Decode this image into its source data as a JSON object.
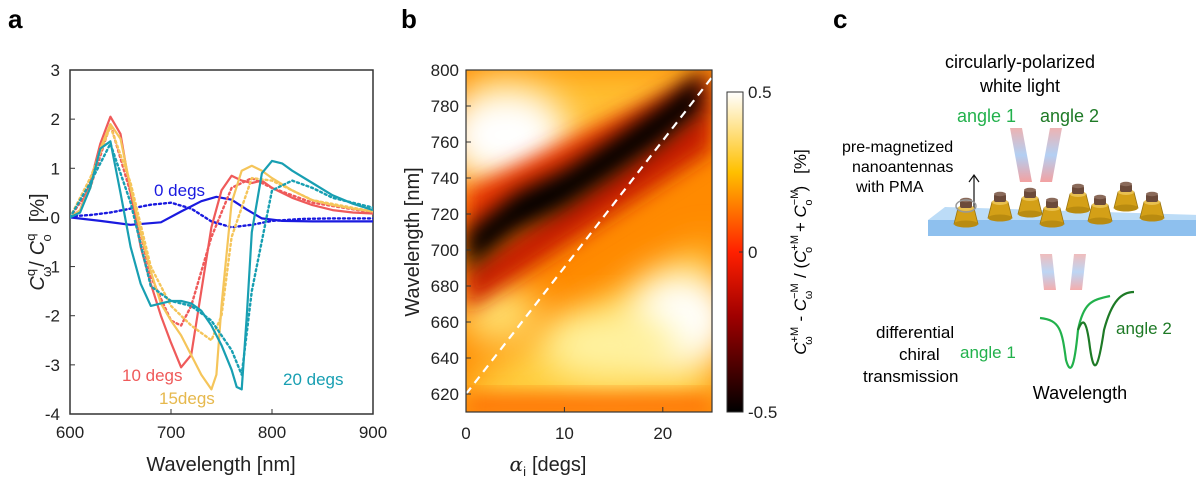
{
  "panels": {
    "a": "a",
    "b": "b",
    "c": "c"
  },
  "chart_data": [
    {
      "type": "line",
      "title": "",
      "xlabel": "Wavelength [nm]",
      "ylabel": "C^q_ω / C^q_o [%]",
      "ylabel_parts": {
        "c": "C",
        "sup": "q",
        "sub": "ω",
        "slash": "/",
        "c2": "C",
        "sup2": "q",
        "sub2": "o",
        "unit": "[%]"
      },
      "xlim": [
        600,
        900
      ],
      "ylim": [
        -4,
        3
      ],
      "xticks": [
        "600",
        "700",
        "800",
        "900"
      ],
      "yticks": [
        "3",
        "2",
        "1",
        "0",
        "-1",
        "-2",
        "-3",
        "-4"
      ],
      "xtick_values": [
        600,
        700,
        800,
        900
      ],
      "ytick_values": [
        3,
        2,
        1,
        0,
        -1,
        -2,
        -3,
        -4
      ],
      "series": [
        {
          "name": "0 degs",
          "label": "0 degs",
          "color": "#1a1adf",
          "style": "solid",
          "x": [
            600,
            630,
            660,
            690,
            710,
            730,
            745,
            760,
            775,
            790,
            810,
            840,
            870,
            900
          ],
          "y": [
            0.0,
            -0.07,
            -0.15,
            -0.1,
            0.12,
            0.33,
            0.42,
            0.36,
            0.16,
            -0.02,
            -0.07,
            -0.08,
            -0.08,
            -0.08
          ]
        },
        {
          "name": "0 degs dotted",
          "color": "#1a1adf",
          "style": "dotted",
          "x": [
            600,
            620,
            640,
            660,
            680,
            700,
            720,
            740,
            760,
            780,
            800,
            830,
            860,
            900
          ],
          "y": [
            0.02,
            0.05,
            0.1,
            0.18,
            0.26,
            0.3,
            0.18,
            -0.08,
            -0.2,
            -0.15,
            -0.07,
            -0.03,
            -0.02,
            -0.02
          ]
        },
        {
          "name": "10 degs",
          "label": "10 degs",
          "color": "#ef5a5a",
          "style": "solid",
          "x": [
            600,
            610,
            620,
            630,
            640,
            650,
            660,
            670,
            680,
            690,
            700,
            710,
            720,
            730,
            740,
            750,
            760,
            770,
            780,
            790,
            800,
            820,
            840,
            860,
            880,
            900
          ],
          "y": [
            0.0,
            0.15,
            0.7,
            1.5,
            2.05,
            1.7,
            0.5,
            -0.6,
            -1.35,
            -2.0,
            -2.55,
            -3.05,
            -2.8,
            -1.5,
            -0.2,
            0.55,
            0.85,
            0.75,
            0.7,
            0.75,
            0.6,
            0.4,
            0.25,
            0.15,
            0.1,
            0.08
          ]
        },
        {
          "name": "10 degs dotted",
          "color": "#ef5a5a",
          "style": "dotted",
          "x": [
            600,
            620,
            640,
            660,
            680,
            700,
            710,
            720,
            740,
            760,
            780,
            800,
            840,
            900
          ],
          "y": [
            0.0,
            0.6,
            1.9,
            0.5,
            -1.2,
            -2.1,
            -2.2,
            -1.8,
            -0.4,
            0.6,
            0.8,
            0.6,
            0.3,
            0.1
          ]
        },
        {
          "name": "15degs",
          "label": "15degs",
          "color": "#f5c55a",
          "style": "solid",
          "x": [
            600,
            610,
            620,
            630,
            640,
            650,
            660,
            670,
            680,
            690,
            700,
            710,
            720,
            730,
            740,
            745,
            750,
            760,
            770,
            780,
            790,
            800,
            820,
            840,
            860,
            880,
            900
          ],
          "y": [
            0.0,
            0.15,
            0.6,
            1.4,
            1.9,
            1.6,
            0.6,
            -0.3,
            -1.1,
            -1.75,
            -2.1,
            -2.4,
            -2.8,
            -3.2,
            -3.5,
            -3.2,
            -1.8,
            0.3,
            0.95,
            1.05,
            0.95,
            0.8,
            0.55,
            0.35,
            0.25,
            0.18,
            0.12
          ]
        },
        {
          "name": "15degs dotted",
          "color": "#f5c55a",
          "style": "dotted",
          "x": [
            600,
            620,
            640,
            660,
            680,
            700,
            720,
            740,
            750,
            760,
            780,
            800,
            840,
            900
          ],
          "y": [
            0.0,
            0.8,
            1.85,
            0.7,
            -1.0,
            -1.8,
            -2.2,
            -2.5,
            -2.0,
            -0.4,
            0.8,
            0.75,
            0.35,
            0.12
          ]
        },
        {
          "name": "20 degs",
          "label": "20 degs",
          "color": "#189fb2",
          "style": "solid",
          "x": [
            600,
            610,
            620,
            630,
            640,
            650,
            660,
            670,
            680,
            690,
            700,
            710,
            720,
            730,
            740,
            750,
            760,
            765,
            770,
            775,
            780,
            790,
            800,
            810,
            820,
            840,
            860,
            880,
            900
          ],
          "y": [
            0.0,
            0.1,
            0.6,
            1.4,
            1.55,
            0.5,
            -0.6,
            -1.35,
            -1.8,
            -1.75,
            -1.7,
            -1.7,
            -1.75,
            -1.9,
            -2.2,
            -2.6,
            -3.1,
            -3.45,
            -3.5,
            -2.0,
            -0.3,
            0.9,
            1.15,
            1.1,
            0.95,
            0.7,
            0.45,
            0.28,
            0.15
          ]
        },
        {
          "name": "20 degs dotted",
          "color": "#189fb2",
          "style": "dotted",
          "x": [
            600,
            620,
            640,
            660,
            680,
            700,
            720,
            740,
            760,
            770,
            780,
            800,
            820,
            840,
            860,
            900
          ],
          "y": [
            0.0,
            0.7,
            1.5,
            0.3,
            -1.4,
            -1.7,
            -1.8,
            -2.1,
            -2.7,
            -3.2,
            -1.5,
            0.55,
            0.75,
            0.6,
            0.4,
            0.2
          ]
        }
      ]
    },
    {
      "type": "heatmap",
      "title": "",
      "xlabel": "α",
      "xlabel_sub": "i",
      "xlabel_unit": "[degs]",
      "ylabel": "Wavelength [nm]",
      "xlim": [
        0,
        25
      ],
      "ylim": [
        610,
        800
      ],
      "xticks": [
        "0",
        "10",
        "20"
      ],
      "yticks": [
        "800",
        "780",
        "760",
        "740",
        "720",
        "700",
        "680",
        "660",
        "640",
        "620"
      ],
      "xtick_values": [
        0,
        10,
        20
      ],
      "ytick_values": [
        800,
        780,
        760,
        740,
        720,
        700,
        680,
        660,
        640,
        620
      ],
      "colorscale": "hot",
      "colorbar": {
        "ticks": [
          "0.5",
          "0",
          "-0.5"
        ],
        "tick_values": [
          0.5,
          0,
          -0.5
        ],
        "range": [
          -0.5,
          0.5
        ],
        "label": "C^{+M}_ω - C^{-M}_ω / (C^{+M}_o + C^{-M}_o) [%]",
        "label_parts": {
          "a": "C",
          "a_sup": "+M",
          "a_sub": "ω",
          "minus": " - ",
          "b": "C",
          "b_sup": "−M",
          "b_sub": "ω",
          "mid": " / (",
          "c": "C",
          "c_sup": "+M",
          "c_sub": "o",
          "plus": " + ",
          "d": "C",
          "d_sup": "−M",
          "d_sub": "o",
          "close": ")",
          "unit": "[%]"
        }
      },
      "reference_line": {
        "style": "dashed",
        "color": "#ffffff",
        "x": [
          0,
          25
        ],
        "y": [
          620,
          796
        ]
      },
      "dark_band": {
        "x": [
          0,
          5,
          10,
          15,
          20,
          24
        ],
        "y": [
          700,
          722,
          735,
          753,
          772,
          790
        ],
        "value": -0.5
      },
      "bright_regions": [
        {
          "x": 1.5,
          "y": 765,
          "value": 0.5
        },
        {
          "x": 22,
          "y": 665,
          "value": 0.5
        },
        {
          "x": 15,
          "y": 640,
          "value": 0.4
        }
      ]
    }
  ],
  "schematic": {
    "light_label_line1": "circularly-polarized",
    "light_label_line2": "white light",
    "angle1": "angle 1",
    "angle2": "angle 2",
    "nano_line1": "pre-magnetized",
    "nano_line2": "nanoantennas",
    "nano_line3": "with PMA",
    "diff_line1": "differential",
    "diff_line2": "chiral",
    "diff_line3": "transmission",
    "spectrum_angle1": "angle 1",
    "spectrum_angle2": "angle 2",
    "wavelength": "Wavelength",
    "colors": {
      "angle1": "#22b14c",
      "angle2": "#1e7a26",
      "substrate": "#a8d0f5",
      "antenna": "#d4a017",
      "cap": "#6b4a3a"
    }
  }
}
